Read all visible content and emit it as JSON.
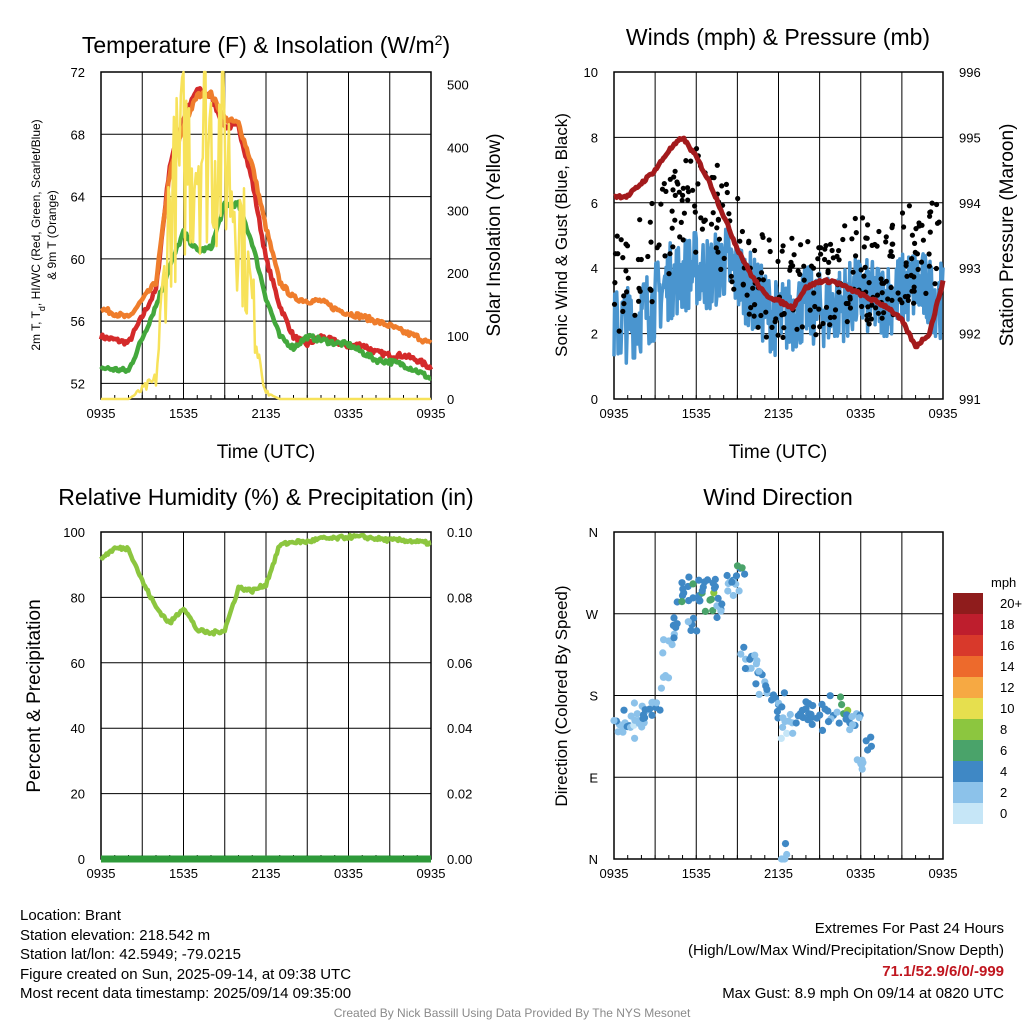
{
  "charts": {
    "temperature": {
      "title": "Temperature (F) & Insolation (W/m",
      "title_sup": "2",
      "title_end": ")",
      "xlabel": "Time (UTC)",
      "ylabel_lines": [
        "2m T, T",
        "d",
        ", HI/WC (Red, Green, Scarlet/Blue)",
        "& 9m T (Orange)"
      ],
      "y2label": "Solar Insolation (Yellow)",
      "x_ticks": [
        "0935",
        "1535",
        "2135",
        "0335",
        "0935"
      ],
      "y_ticks": [
        "52",
        "56",
        "60",
        "64",
        "68",
        "72"
      ],
      "y2_ticks": [
        "0",
        "100",
        "200",
        "300",
        "400",
        "500"
      ]
    },
    "winds": {
      "title": "Winds (mph) & Pressure (mb)",
      "xlabel": "Time (UTC)",
      "ylabel": "Sonic Wind & Gust (Blue, Black)",
      "y2label": "Station Pressure (Maroon)",
      "x_ticks": [
        "0935",
        "1535",
        "2135",
        "0335",
        "0935"
      ],
      "y_ticks": [
        "0",
        "2",
        "4",
        "6",
        "8",
        "10"
      ],
      "y2_ticks": [
        "991",
        "992",
        "993",
        "994",
        "995",
        "996"
      ]
    },
    "humidity": {
      "title": "Relative Humidity (%) & Precipitation (in)",
      "ylabel": "Percent & Precipitation",
      "x_ticks": [
        "0935",
        "1535",
        "2135",
        "0335",
        "0935"
      ],
      "y_ticks": [
        "0",
        "20",
        "40",
        "60",
        "80",
        "100"
      ],
      "y2_ticks": [
        "0.00",
        "0.02",
        "0.04",
        "0.06",
        "0.08",
        "0.10"
      ]
    },
    "direction": {
      "title": "Wind Direction",
      "ylabel": "Direction (Colored By Speed)",
      "x_ticks": [
        "0935",
        "1535",
        "2135",
        "0335",
        "0935"
      ],
      "y_ticks": [
        "N",
        "E",
        "S",
        "W",
        "N"
      ],
      "legend_title": "mph",
      "legend_labels": [
        "0",
        "2",
        "4",
        "6",
        "8",
        "10",
        "12",
        "14",
        "16",
        "18",
        "20+"
      ],
      "legend_colors": [
        "#c6e6f7",
        "#8cc2ea",
        "#3f88c5",
        "#4aa36a",
        "#8cc63f",
        "#e6df4e",
        "#f6a943",
        "#ed6a2c",
        "#d8392b",
        "#be1e2d",
        "#8f1c1c"
      ]
    }
  },
  "station": {
    "location": "Location: Brant",
    "elevation": "Station elevation: 218.542 m",
    "latlon": "Station lat/lon: 42.5949; -79.0215",
    "created": "Figure created on Sun, 2025-09-14, at 09:38 UTC",
    "recent": "Most recent data timestamp: 2025/09/14 09:35:00"
  },
  "extremes": {
    "title": "Extremes For Past 24 Hours",
    "subtitle": "(High/Low/Max Wind/Precipitation/Snow Depth)",
    "values": "71.1/52.9/6/0/-999",
    "max_gust": "Max Gust: 8.9 mph On 09/14 at 0820 UTC"
  },
  "credit": "Created By Nick Bassill Using Data Provided By The NYS Mesonet",
  "chart_data": [
    {
      "type": "line",
      "title": "Temperature (F) & Insolation (W/m2)",
      "xlabel": "Time (UTC)",
      "ylabel": "2m T, Td, HI/WC (Red, Green, Scarlet/Blue) & 9m T (Orange)",
      "y2label": "Solar Insolation (Yellow)",
      "ylim": [
        51,
        72
      ],
      "y2lim": [
        0,
        520
      ],
      "x_hours": [
        0,
        2,
        4,
        5,
        6,
        7,
        8,
        9,
        10,
        11,
        12,
        13,
        14,
        15,
        16,
        17,
        18,
        19,
        20,
        21,
        22,
        23,
        24
      ],
      "series": [
        {
          "name": "2m T (Red)",
          "color": "#d42a2a",
          "values": [
            55,
            54.6,
            58,
            66,
            69,
            70.9,
            70.4,
            68.5,
            68.5,
            65,
            60,
            57,
            55,
            54.5,
            55,
            54.7,
            54.4,
            54.5,
            54,
            53.8,
            53.8,
            53.5,
            53
          ]
        },
        {
          "name": "9m T (Orange)",
          "color": "#ef7d2c",
          "values": [
            56.8,
            56.2,
            58.5,
            65.5,
            68.5,
            70.5,
            70.6,
            69,
            68.7,
            66,
            62,
            58.5,
            57.5,
            57.3,
            57.3,
            56.8,
            56.5,
            56.3,
            56,
            55.7,
            55.3,
            55,
            54.5
          ]
        },
        {
          "name": "2m Td (Green)",
          "color": "#43a83c",
          "values": [
            53,
            52.8,
            57,
            59.5,
            61.7,
            60.5,
            60.7,
            63.5,
            63.5,
            61,
            57.5,
            55,
            54.3,
            55,
            54.8,
            54.6,
            54.5,
            54,
            53.5,
            53.4,
            53.2,
            52.8,
            52.3
          ]
        },
        {
          "name": "Solar Insolation (Yellow)",
          "color": "#f7e25a",
          "axis": "y2",
          "values": [
            0,
            0,
            30,
            300,
            380,
            410,
            420,
            400,
            300,
            150,
            10,
            0,
            0,
            0,
            0,
            0,
            0,
            0,
            0,
            0,
            0,
            0,
            0
          ]
        }
      ]
    },
    {
      "type": "line",
      "title": "Winds (mph) & Pressure (mb)",
      "xlabel": "Time (UTC)",
      "ylabel": "Sonic Wind & Gust (Blue, Black)",
      "y2label": "Station Pressure (Maroon)",
      "ylim": [
        0,
        10
      ],
      "y2lim": [
        991,
        996
      ],
      "x_hours": [
        0,
        1,
        2,
        3,
        4,
        5,
        6,
        7,
        8,
        9,
        10,
        11,
        12,
        13,
        14,
        15,
        16,
        17,
        18,
        19,
        20,
        21,
        22,
        23,
        24
      ],
      "series": [
        {
          "name": "Sonic Wind (Blue)",
          "color": "#4a95cf",
          "values": [
            2.2,
            2.3,
            2.6,
            3,
            3.6,
            3.8,
            4,
            3.8,
            4.2,
            3.8,
            3.3,
            2.8,
            2.4,
            2.6,
            2.9,
            2.7,
            2.8,
            3,
            3.2,
            3,
            3.1,
            3.3,
            3.5,
            3.2,
            3
          ]
        },
        {
          "name": "Gust (Black)",
          "color": "#000000",
          "values": [
            3.4,
            3.6,
            4,
            4.6,
            5.2,
            5.8,
            6.1,
            5.9,
            5.4,
            4.8,
            4,
            3.5,
            3.2,
            3.4,
            3.6,
            3.5,
            3.6,
            3.8,
            4,
            3.8,
            4,
            4.2,
            4.5,
            4.5,
            4.3
          ]
        },
        {
          "name": "Station Pressure (Maroon)",
          "color": "#a31a1c",
          "axis": "y2",
          "values": [
            994.1,
            994.1,
            994.3,
            994.5,
            994.8,
            995.0,
            994.7,
            994.3,
            993.8,
            993.3,
            992.9,
            992.6,
            992.5,
            992.4,
            992.7,
            992.8,
            992.8,
            992.7,
            992.6,
            992.5,
            992.4,
            992.2,
            991.8,
            992.0,
            992.8
          ]
        }
      ]
    },
    {
      "type": "line",
      "title": "Relative Humidity (%) & Precipitation (in)",
      "ylabel": "Percent & Precipitation",
      "ylim": [
        0,
        100
      ],
      "y2lim": [
        0,
        0.1
      ],
      "x_hours": [
        0,
        1,
        2,
        3,
        4,
        5,
        6,
        7,
        8,
        9,
        10,
        11,
        12,
        13,
        14,
        15,
        16,
        17,
        18,
        19,
        20,
        21,
        22,
        23,
        24
      ],
      "series": [
        {
          "name": "Relative Humidity",
          "color": "#8cc63f",
          "values": [
            92,
            95,
            95,
            85,
            77,
            72,
            77,
            70,
            69,
            70,
            83,
            82,
            84,
            96,
            97,
            97,
            98,
            98,
            98.5,
            98.5,
            98,
            97.5,
            97.5,
            97,
            96.5
          ]
        },
        {
          "name": "Precipitation",
          "color": "#2e9a3a",
          "axis": "y2",
          "values": [
            0,
            0,
            0,
            0,
            0,
            0,
            0,
            0,
            0,
            0,
            0,
            0,
            0,
            0,
            0,
            0,
            0,
            0,
            0,
            0,
            0,
            0,
            0,
            0,
            0
          ]
        }
      ]
    },
    {
      "type": "scatter",
      "title": "Wind Direction",
      "ylabel": "Direction (Colored By Speed)",
      "ylim": [
        0,
        360
      ],
      "y_tick_meaning": {
        "N": 0,
        "E": 90,
        "S": 180,
        "W": 270
      },
      "points": [
        {
          "x": 0.3,
          "y": 140,
          "s": 2
        },
        {
          "x": 0.8,
          "y": 150,
          "s": 2
        },
        {
          "x": 1.2,
          "y": 145,
          "s": 1
        },
        {
          "x": 1.7,
          "y": 160,
          "s": 2
        },
        {
          "x": 2.2,
          "y": 150,
          "s": 2
        },
        {
          "x": 2.6,
          "y": 165,
          "s": 3
        },
        {
          "x": 3.1,
          "y": 172,
          "s": 2
        },
        {
          "x": 3.6,
          "y": 200,
          "s": 2
        },
        {
          "x": 4.0,
          "y": 240,
          "s": 2
        },
        {
          "x": 4.5,
          "y": 255,
          "s": 3
        },
        {
          "x": 5.0,
          "y": 290,
          "s": 4
        },
        {
          "x": 5.4,
          "y": 300,
          "s": 4
        },
        {
          "x": 5.8,
          "y": 265,
          "s": 3
        },
        {
          "x": 6.2,
          "y": 290,
          "s": 4
        },
        {
          "x": 6.6,
          "y": 305,
          "s": 4
        },
        {
          "x": 7.0,
          "y": 285,
          "s": 6
        },
        {
          "x": 7.4,
          "y": 300,
          "s": 3
        },
        {
          "x": 7.8,
          "y": 275,
          "s": 3
        },
        {
          "x": 8.3,
          "y": 295,
          "s": 2
        },
        {
          "x": 8.7,
          "y": 305,
          "s": 2
        },
        {
          "x": 9.2,
          "y": 320,
          "s": 4
        },
        {
          "x": 9.6,
          "y": 220,
          "s": 2
        },
        {
          "x": 10.0,
          "y": 210,
          "s": 2
        },
        {
          "x": 10.5,
          "y": 205,
          "s": 3
        },
        {
          "x": 11.0,
          "y": 195,
          "s": 2
        },
        {
          "x": 11.5,
          "y": 175,
          "s": 3
        },
        {
          "x": 12.0,
          "y": 170,
          "s": 3
        },
        {
          "x": 12.3,
          "y": 145,
          "s": 1
        },
        {
          "x": 12.6,
          "y": 5,
          "s": 2
        },
        {
          "x": 13.0,
          "y": 150,
          "s": 2
        },
        {
          "x": 13.6,
          "y": 160,
          "s": 3
        },
        {
          "x": 14.2,
          "y": 160,
          "s": 4
        },
        {
          "x": 14.8,
          "y": 155,
          "s": 3
        },
        {
          "x": 15.4,
          "y": 165,
          "s": 4
        },
        {
          "x": 16.0,
          "y": 158,
          "s": 3
        },
        {
          "x": 16.6,
          "y": 170,
          "s": 6
        },
        {
          "x": 17.2,
          "y": 150,
          "s": 3
        },
        {
          "x": 17.7,
          "y": 160,
          "s": 2
        },
        {
          "x": 18.0,
          "y": 105,
          "s": 2
        },
        {
          "x": 18.5,
          "y": 120,
          "s": 3
        }
      ]
    }
  ]
}
